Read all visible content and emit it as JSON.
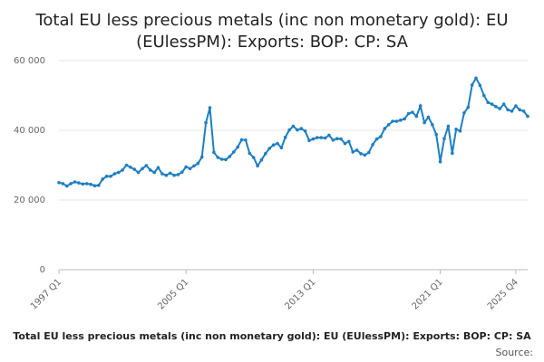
{
  "chart_data": {
    "type": "line",
    "title_lines": [
      "Total EU less precious metals (inc non monetary gold): EU",
      "(EUlessPM): Exports: BOP: CP: SA"
    ],
    "series": [
      {
        "name": "Total EU less precious metals (inc non monetary gold): EU (EUlessPM): Exports: BOP: CP: SA",
        "color": "#1f7fc0",
        "start": "1997 Q1",
        "values": [
          25000,
          24700,
          24000,
          24700,
          25200,
          24900,
          24600,
          24700,
          24500,
          24100,
          24200,
          26000,
          26800,
          26800,
          27500,
          27900,
          28600,
          30000,
          29400,
          28800,
          27900,
          29000,
          29900,
          28600,
          27900,
          29300,
          27500,
          27100,
          27700,
          27100,
          27300,
          28000,
          29500,
          29000,
          29800,
          30500,
          32300,
          42200,
          46500,
          33700,
          32200,
          31700,
          31600,
          32500,
          33800,
          35200,
          37300,
          37200,
          33400,
          32200,
          29800,
          31500,
          33300,
          34800,
          35800,
          36200,
          35000,
          38000,
          40100,
          41200,
          40100,
          40500,
          39800,
          37100,
          37500,
          37900,
          37900,
          37800,
          38600,
          37200,
          37600,
          37500,
          36200,
          36800,
          33800,
          34300,
          33300,
          32900,
          33600,
          35900,
          37500,
          38200,
          40500,
          41600,
          42600,
          42600,
          42900,
          43300,
          44800,
          45200,
          44000,
          47000,
          42200,
          43800,
          41600,
          38800,
          31000,
          37600,
          41200,
          33400,
          40300,
          39800,
          45000,
          46600,
          53000,
          55000,
          52900,
          50000,
          48000,
          47500,
          46800,
          46200,
          47500,
          45900,
          45500,
          47000,
          45900,
          45500,
          44000
        ]
      }
    ],
    "x_ticks": [
      "1997 Q1",
      "2005 Q1",
      "2013 Q1",
      "2021 Q1",
      "2025 Q4"
    ],
    "y_ticks": [
      "0",
      "20 000",
      "40 000",
      "60 000"
    ],
    "ylim": [
      0,
      60000
    ],
    "grid": "horizontal",
    "legend_position": "bottom",
    "credit": "Source:"
  }
}
